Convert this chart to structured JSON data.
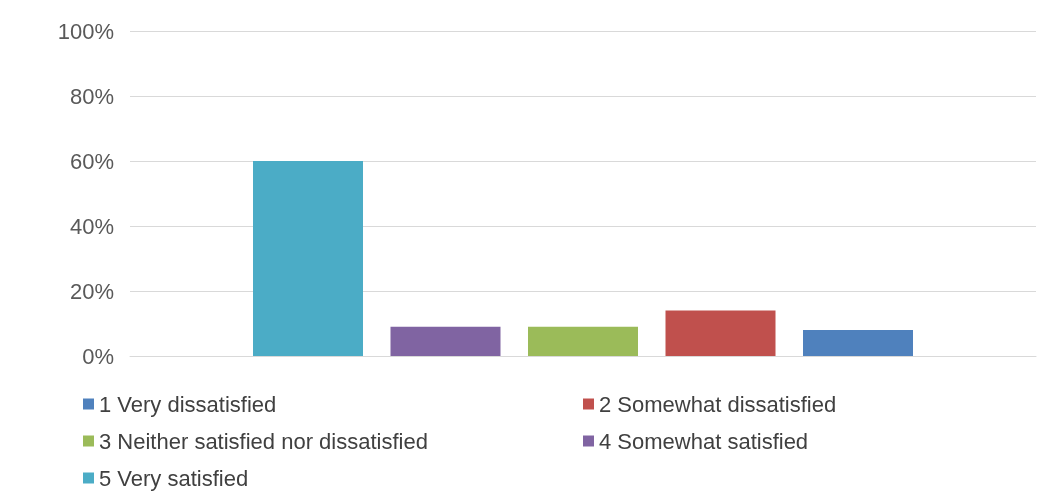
{
  "chart_data": {
    "type": "bar",
    "categories": [
      null
    ],
    "series": [
      {
        "name": "1 Very dissatisfied",
        "color": "#4f81bd",
        "values": [
          8
        ]
      },
      {
        "name": "2 Somewhat dissatisfied",
        "color": "#c0504d",
        "values": [
          14
        ]
      },
      {
        "name": "3 Neither satisfied nor dissatisfied",
        "color": "#9bbb59",
        "values": [
          9
        ]
      },
      {
        "name": "4 Somewhat satisfied",
        "color": "#8064a2",
        "values": [
          9
        ]
      },
      {
        "name": "5 Very satisfied",
        "color": "#4bacc6",
        "values": [
          60
        ]
      }
    ],
    "ylim": [
      0,
      100
    ],
    "yticks": [
      {
        "value": 0,
        "label": "0%"
      },
      {
        "value": 20,
        "label": "20%"
      },
      {
        "value": 40,
        "label": "40%"
      },
      {
        "value": 60,
        "label": "60%"
      },
      {
        "value": 80,
        "label": "80%"
      },
      {
        "value": 100,
        "label": "100%"
      }
    ],
    "grid": "y",
    "legend": "bottom"
  }
}
